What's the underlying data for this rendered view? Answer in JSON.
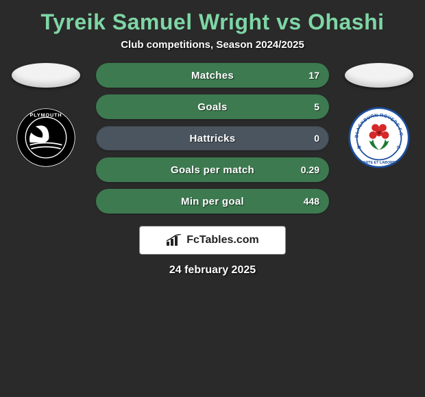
{
  "title": "Tyreik Samuel Wright vs Ohashi",
  "subtitle": "Club competitions, Season 2024/2025",
  "date": "24 february 2025",
  "brand": "FcTables.com",
  "colors": {
    "accent": "#7ed6a5",
    "bar_track": "#445",
    "bar_fill_green": "#3d7a50",
    "background": "#2a2a2a"
  },
  "left_club": {
    "name": "Plymouth",
    "badge_bg": "#000000",
    "badge_fg": "#ffffff"
  },
  "right_club": {
    "name": "Blackburn Rovers F.C.",
    "badge_bg": "#ffffff",
    "badge_ring": "#1b4fa0",
    "rose_red": "#d62828",
    "leaf_green": "#1f7a33"
  },
  "stats": [
    {
      "label": "Matches",
      "value": "17",
      "fill_pct": 100,
      "fill_color": "#3d7a50",
      "track_color": "#3d7a50"
    },
    {
      "label": "Goals",
      "value": "5",
      "fill_pct": 100,
      "fill_color": "#3d7a50",
      "track_color": "#3d7a50"
    },
    {
      "label": "Hattricks",
      "value": "0",
      "fill_pct": 0,
      "fill_color": "#3d7a50",
      "track_color": "#4a5560"
    },
    {
      "label": "Goals per match",
      "value": "0.29",
      "fill_pct": 100,
      "fill_color": "#3d7a50",
      "track_color": "#3d7a50"
    },
    {
      "label": "Min per goal",
      "value": "448",
      "fill_pct": 100,
      "fill_color": "#3d7a50",
      "track_color": "#3d7a50"
    }
  ]
}
